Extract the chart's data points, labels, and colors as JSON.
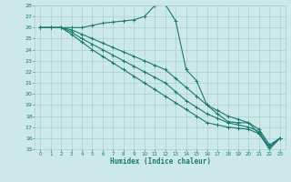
{
  "xlabel": "Humidex (Indice chaleur)",
  "ylabel": "",
  "bg_color": "#cce8e8",
  "grid_color": "#aad0d0",
  "line_color": "#1a7a6e",
  "xlim": [
    -0.5,
    23.5
  ],
  "ylim": [
    15,
    28
  ],
  "xticks": [
    0,
    1,
    2,
    3,
    4,
    5,
    6,
    7,
    8,
    9,
    10,
    11,
    12,
    13,
    14,
    15,
    16,
    17,
    18,
    19,
    20,
    21,
    22,
    23
  ],
  "yticks": [
    15,
    16,
    17,
    18,
    19,
    20,
    21,
    22,
    23,
    24,
    25,
    26,
    27,
    28
  ],
  "line1_x": [
    0,
    1,
    2,
    3,
    4,
    5,
    6,
    7,
    8,
    9,
    10,
    11,
    12,
    13,
    14,
    15,
    16,
    17,
    18,
    19,
    20,
    21,
    22,
    23
  ],
  "line1_y": [
    26,
    26,
    26,
    26,
    26,
    26.2,
    26.4,
    26.5,
    26.6,
    26.7,
    27.0,
    28.0,
    28.1,
    26.6,
    22.2,
    21.2,
    19.0,
    18.2,
    17.5,
    17.4,
    17.4,
    16.4,
    15.2,
    16.0
  ],
  "line2_x": [
    0,
    1,
    2,
    3,
    4,
    5,
    6,
    7,
    8,
    9,
    10,
    11,
    12,
    13,
    14,
    15,
    16,
    17,
    18,
    19,
    20,
    21,
    22,
    23
  ],
  "line2_y": [
    26,
    26,
    26,
    25.8,
    25.4,
    25.0,
    24.6,
    24.2,
    23.8,
    23.4,
    23.0,
    22.6,
    22.2,
    21.4,
    20.6,
    19.8,
    19.0,
    18.5,
    18.0,
    17.7,
    17.4,
    16.8,
    15.4,
    16.0
  ],
  "line3_x": [
    0,
    1,
    2,
    3,
    4,
    5,
    6,
    7,
    8,
    9,
    10,
    11,
    12,
    13,
    14,
    15,
    16,
    17,
    18,
    19,
    20,
    21,
    22,
    23
  ],
  "line3_y": [
    26,
    26,
    26,
    25.6,
    25.0,
    24.5,
    24.0,
    23.5,
    23.0,
    22.5,
    22.0,
    21.5,
    21.0,
    20.2,
    19.4,
    18.8,
    18.2,
    17.8,
    17.4,
    17.2,
    17.0,
    16.6,
    15.2,
    16.0
  ],
  "line4_x": [
    0,
    1,
    2,
    3,
    4,
    5,
    6,
    7,
    8,
    9,
    10,
    11,
    12,
    13,
    14,
    15,
    16,
    17,
    18,
    19,
    20,
    21,
    22,
    23
  ],
  "line4_y": [
    26,
    26,
    26,
    25.4,
    24.7,
    24.0,
    23.4,
    22.8,
    22.2,
    21.6,
    21.0,
    20.4,
    19.8,
    19.2,
    18.6,
    18.0,
    17.4,
    17.2,
    17.0,
    16.9,
    16.8,
    16.4,
    15.0,
    16.0
  ]
}
